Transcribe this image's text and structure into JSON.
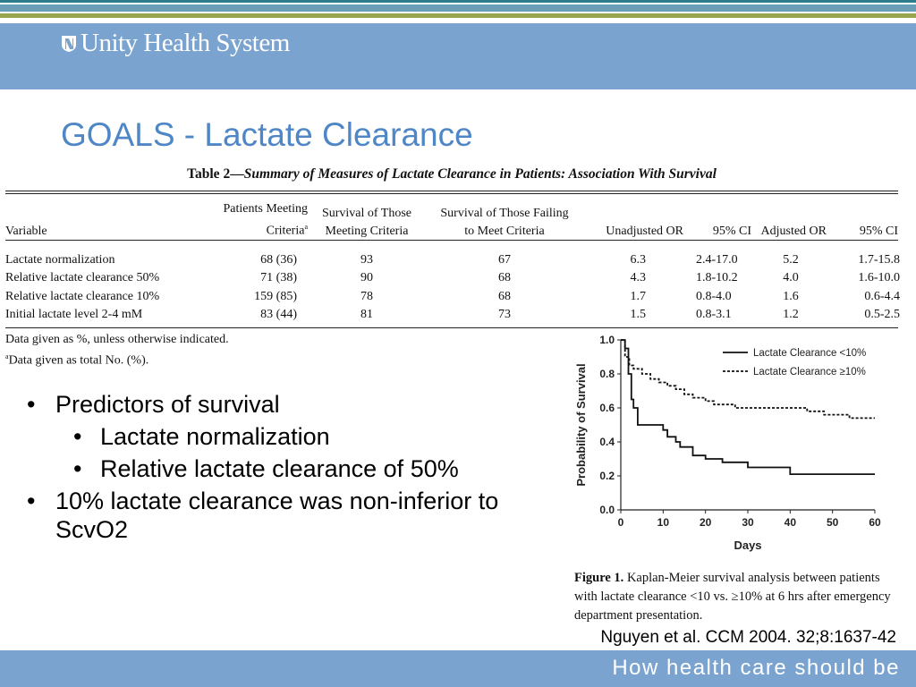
{
  "header": {
    "logo_text": "Unity Health System",
    "tagline": "How health care should be"
  },
  "slide": {
    "title": "GOALS - Lactate Clearance"
  },
  "table": {
    "caption_prefix": "Table 2—",
    "caption_italic": "Summary of Measures of Lactate Clearance in Patients: Association With Survival",
    "headers": {
      "variable": "Variable",
      "meeting_line1": "Patients Meeting",
      "meeting_line2": "Criteria",
      "meeting_sup": "a",
      "surv_meet_line1": "Survival of Those",
      "surv_meet_line2": "Meeting Criteria",
      "surv_fail_line1": "Survival of Those Failing",
      "surv_fail_line2": "to Meet Criteria",
      "unadj_or": "Unadjusted OR",
      "ci1": "95% CI",
      "adj_or": "Adjusted OR",
      "ci2": "95% CI"
    },
    "rows": [
      [
        "Lactate normalization",
        "68 (36)",
        "93",
        "67",
        "6.3",
        "2.4-17.0",
        "5.2",
        "1.7-15.8"
      ],
      [
        "Relative lactate clearance 50%",
        "71 (38)",
        "90",
        "68",
        "4.3",
        "1.8-10.2",
        "4.0",
        "1.6-10.0"
      ],
      [
        "Relative lactate clearance 10%",
        "159 (85)",
        "78",
        "68",
        "1.7",
        "0.8-4.0",
        "1.6",
        "0.6-4.4"
      ],
      [
        "Initial lactate level 2-4 mM",
        "83 (44)",
        "81",
        "73",
        "1.5",
        "0.8-3.1",
        "1.2",
        "0.5-2.5"
      ]
    ],
    "note1": "Data given as %, unless otherwise indicated.",
    "note2_sup": "a",
    "note2": "Data given as total No. (%)."
  },
  "bullets": {
    "b1": "Predictors of survival",
    "b1a": "Lactate normalization",
    "b1b": "Relative lactate clearance of 50%",
    "b2": "10% lactate clearance was non-inferior to ScvO2",
    "marker": "•"
  },
  "chart_data": {
    "type": "line",
    "xlabel": "Days",
    "ylabel": "Probability of Survival",
    "xlim": [
      0,
      60
    ],
    "ylim": [
      0,
      1
    ],
    "x_ticks": [
      "0",
      "10",
      "20",
      "30",
      "40",
      "50",
      "60"
    ],
    "y_ticks": [
      "0.0",
      "0.2",
      "0.4",
      "0.6",
      "0.8",
      "1.0"
    ],
    "legend_position": "top-right",
    "series": [
      {
        "name": "Lactate Clearance <10%",
        "style": "solid",
        "points": [
          [
            0,
            1.0
          ],
          [
            1,
            1.0
          ],
          [
            1,
            0.95
          ],
          [
            1.8,
            0.95
          ],
          [
            1.8,
            0.8
          ],
          [
            2.5,
            0.8
          ],
          [
            2.5,
            0.65
          ],
          [
            3,
            0.65
          ],
          [
            3,
            0.6
          ],
          [
            4,
            0.6
          ],
          [
            4,
            0.5
          ],
          [
            10,
            0.5
          ],
          [
            10,
            0.47
          ],
          [
            11,
            0.47
          ],
          [
            11,
            0.43
          ],
          [
            13,
            0.43
          ],
          [
            13,
            0.4
          ],
          [
            14,
            0.4
          ],
          [
            14,
            0.37
          ],
          [
            17,
            0.37
          ],
          [
            17,
            0.32
          ],
          [
            20,
            0.32
          ],
          [
            20,
            0.3
          ],
          [
            24,
            0.3
          ],
          [
            24,
            0.28
          ],
          [
            30,
            0.28
          ],
          [
            30,
            0.25
          ],
          [
            40,
            0.25
          ],
          [
            40,
            0.21
          ],
          [
            60,
            0.21
          ]
        ]
      },
      {
        "name": "Lactate Clearance ≥10%",
        "style": "dashed",
        "points": [
          [
            0,
            1.0
          ],
          [
            1,
            1.0
          ],
          [
            1,
            0.9
          ],
          [
            2,
            0.9
          ],
          [
            2,
            0.85
          ],
          [
            3,
            0.85
          ],
          [
            3,
            0.83
          ],
          [
            5,
            0.83
          ],
          [
            5,
            0.8
          ],
          [
            7,
            0.8
          ],
          [
            7,
            0.77
          ],
          [
            9,
            0.77
          ],
          [
            9,
            0.75
          ],
          [
            11,
            0.75
          ],
          [
            11,
            0.73
          ],
          [
            13,
            0.73
          ],
          [
            13,
            0.71
          ],
          [
            15,
            0.71
          ],
          [
            15,
            0.68
          ],
          [
            17,
            0.68
          ],
          [
            17,
            0.66
          ],
          [
            20,
            0.66
          ],
          [
            20,
            0.64
          ],
          [
            22,
            0.64
          ],
          [
            22,
            0.62
          ],
          [
            27,
            0.62
          ],
          [
            27,
            0.6
          ],
          [
            44,
            0.6
          ],
          [
            44,
            0.58
          ],
          [
            48,
            0.58
          ],
          [
            48,
            0.56
          ],
          [
            54,
            0.56
          ],
          [
            54,
            0.54
          ],
          [
            60,
            0.54
          ]
        ]
      }
    ]
  },
  "figure": {
    "label": "Figure 1.",
    "caption": "Kaplan-Meier survival analysis between patients with lactate clearance <10 vs. ≥10% at 6 hrs after emergency department presentation."
  },
  "citation": "Nguyen et al. CCM 2004. 32;8:1637-42"
}
